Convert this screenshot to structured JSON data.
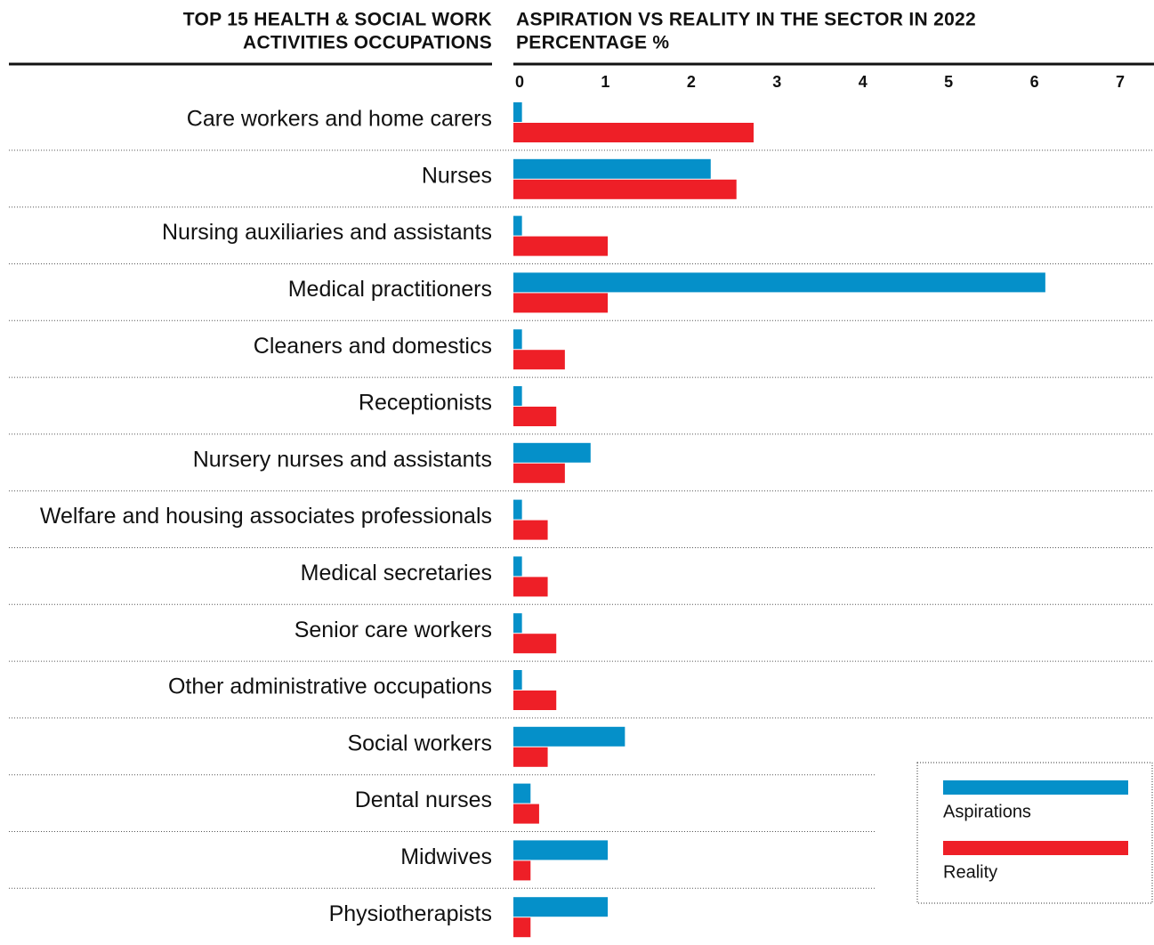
{
  "chart_data": {
    "type": "barh",
    "left_title": [
      "TOP 15 HEALTH & SOCIAL WORK",
      "ACTIVITIES OCCUPATIONS"
    ],
    "title": [
      "ASPIRATION VS REALITY IN THE SECTOR IN 2022",
      "PERCENTAGE %"
    ],
    "categories": [
      "Care workers and home carers",
      "Nurses",
      "Nursing auxiliaries and assistants",
      "Medical practitioners",
      "Cleaners and domestics",
      "Receptionists",
      "Nursery nurses and assistants",
      "Welfare and housing associates professionals",
      "Medical secretaries",
      "Senior care workers",
      "Other administrative occupations",
      "Social workers",
      "Dental nurses",
      "Midwives",
      "Physiotherapists"
    ],
    "series": [
      {
        "name": "Aspirations",
        "color": "#0590c9",
        "values": [
          0.1,
          2.3,
          0.1,
          6.2,
          0.1,
          0.1,
          0.9,
          0.1,
          0.1,
          0.1,
          0.1,
          1.3,
          0.2,
          1.1,
          1.1
        ]
      },
      {
        "name": "Reality",
        "color": "#ee1f27",
        "values": [
          2.8,
          2.6,
          1.1,
          1.1,
          0.6,
          0.5,
          0.6,
          0.4,
          0.4,
          0.5,
          0.5,
          0.4,
          0.3,
          0.2,
          0.2
        ]
      }
    ],
    "xlim": [
      0,
      7
    ],
    "xticks": [
      0,
      1,
      2,
      3,
      4,
      5,
      6,
      7
    ],
    "legend": "lower right"
  }
}
